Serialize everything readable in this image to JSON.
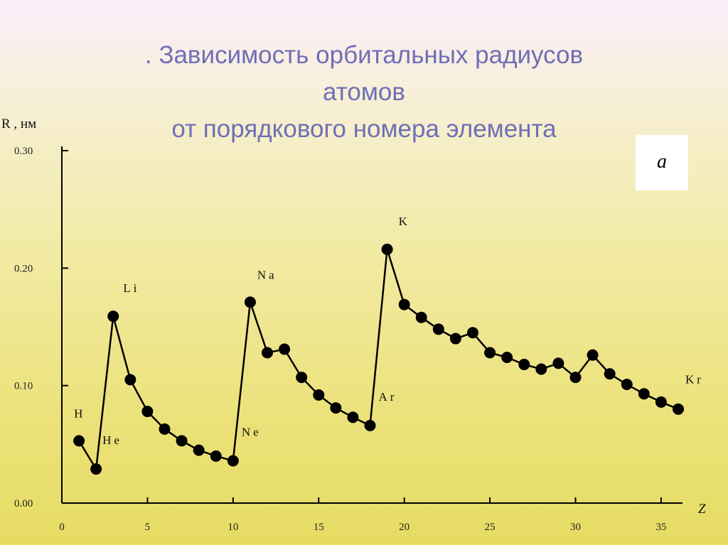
{
  "title": {
    "line1": ". Зависимость орбитальных радиусов",
    "line2": "атомов",
    "line3": "от порядкового номера элемента"
  },
  "panel_label": "a",
  "chart_data": {
    "type": "line",
    "title": ". Зависимость орбитальных радиусов атомов от порядкового номера элемента",
    "ylabel": "R , нм",
    "xlabel": "Z",
    "xlim": [
      0,
      36
    ],
    "ylim": [
      0,
      0.3
    ],
    "x_ticks": [
      0,
      5,
      10,
      15,
      20,
      25,
      30,
      35
    ],
    "x_tick_labels": [
      "0",
      "5",
      "10",
      "15",
      "20",
      "25",
      "30",
      "35"
    ],
    "y_ticks": [
      0,
      0.1,
      0.2,
      0.3
    ],
    "y_tick_labels": [
      "0.00",
      "0.10",
      "0.20",
      "0.30"
    ],
    "grid": false,
    "series": [
      {
        "x": [
          1,
          2,
          3,
          4,
          5,
          6,
          7,
          8,
          9,
          10,
          11,
          12,
          13,
          14,
          15,
          16,
          17,
          18,
          19,
          20,
          21,
          22,
          23,
          24,
          25,
          26,
          27,
          28,
          29,
          30,
          31,
          32,
          33,
          34,
          35,
          36
        ],
        "y": [
          0.053,
          0.029,
          0.159,
          0.105,
          0.078,
          0.063,
          0.053,
          0.045,
          0.04,
          0.036,
          0.171,
          0.128,
          0.131,
          0.107,
          0.092,
          0.081,
          0.073,
          0.066,
          0.216,
          0.169,
          0.158,
          0.148,
          0.14,
          0.145,
          0.128,
          0.124,
          0.118,
          0.114,
          0.119,
          0.107,
          0.126,
          0.11,
          0.101,
          0.093,
          0.086,
          0.08
        ]
      }
    ],
    "annotations": [
      {
        "text": "H",
        "x": 1,
        "y": 0.053
      },
      {
        "text": "He",
        "x": 2,
        "y": 0.029
      },
      {
        "text": "Li",
        "x": 3,
        "y": 0.159
      },
      {
        "text": "Ne",
        "x": 10,
        "y": 0.036
      },
      {
        "text": "Na",
        "x": 11,
        "y": 0.171
      },
      {
        "text": "Ar",
        "x": 18,
        "y": 0.066
      },
      {
        "text": "K",
        "x": 19,
        "y": 0.216
      },
      {
        "text": "Kr",
        "x": 36,
        "y": 0.08
      }
    ]
  }
}
